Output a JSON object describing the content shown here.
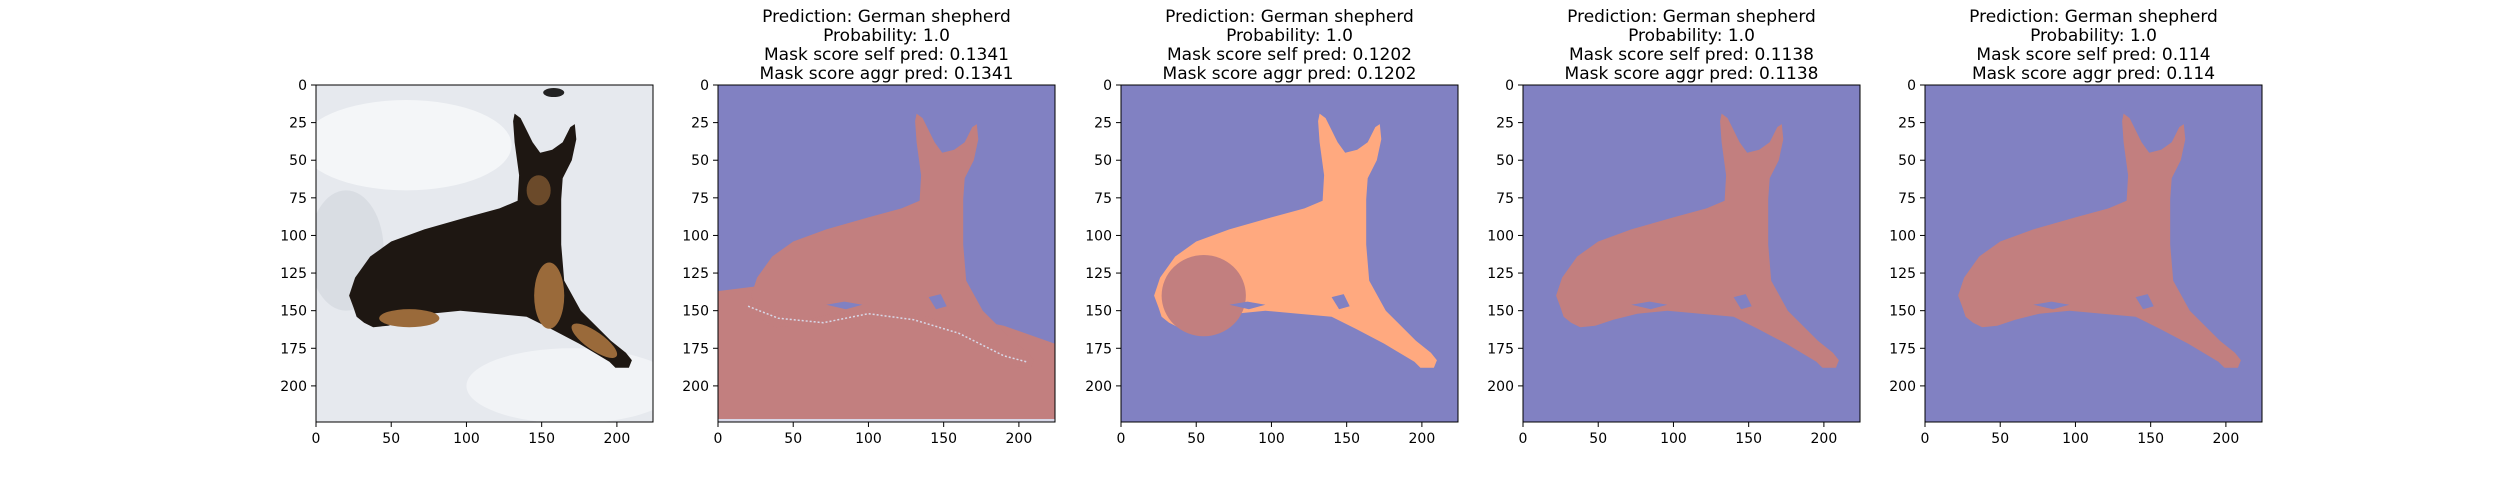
{
  "figure": {
    "background": "#ffffff",
    "axis_color": "#000000",
    "colors": {
      "mask_background": "#8181c2",
      "mask_object": "#c27f7f",
      "mask_highlight": "#ffa97f",
      "mask_edge": "#d8d8e8",
      "snow": "#e6e9ee",
      "dog_dark": "#1e1712",
      "dog_tan": "#9a6a3a"
    }
  },
  "chart_data": [
    {
      "type": "image",
      "content": "photo",
      "subject": "German shepherd lying in snow",
      "title_lines": [],
      "xlim": [
        0,
        224
      ],
      "ylim": [
        224,
        0
      ],
      "x_ticks": [
        0,
        50,
        100,
        150,
        200
      ],
      "y_ticks": [
        0,
        25,
        50,
        75,
        100,
        125,
        150,
        175,
        200
      ]
    },
    {
      "type": "image",
      "content": "mask",
      "mask_variant": "mask_with_ground",
      "title_lines": [
        "Prediction: German shepherd",
        "Probability: 1.0",
        "Mask score self pred: 0.1341",
        "Mask score aggr pred: 0.1341"
      ],
      "prediction": "German shepherd",
      "probability": 1.0,
      "mask_score_self_pred": 0.1341,
      "mask_score_aggr_pred": 0.1341,
      "xlim": [
        0,
        224
      ],
      "ylim": [
        224,
        0
      ],
      "x_ticks": [
        0,
        50,
        100,
        150,
        200
      ],
      "y_ticks": [
        0,
        25,
        50,
        75,
        100,
        125,
        150,
        175,
        200
      ]
    },
    {
      "type": "image",
      "content": "mask",
      "mask_variant": "two_part_mask",
      "title_lines": [
        "Prediction: German shepherd",
        "Probability: 1.0",
        "Mask score self pred: 0.1202",
        "Mask score aggr pred: 0.1202"
      ],
      "prediction": "German shepherd",
      "probability": 1.0,
      "mask_score_self_pred": 0.1202,
      "mask_score_aggr_pred": 0.1202,
      "xlim": [
        0,
        224
      ],
      "ylim": [
        224,
        0
      ],
      "x_ticks": [
        0,
        50,
        100,
        150,
        200
      ],
      "y_ticks": [
        0,
        25,
        50,
        75,
        100,
        125,
        150,
        175,
        200
      ]
    },
    {
      "type": "image",
      "content": "mask",
      "mask_variant": "dog_mask",
      "title_lines": [
        "Prediction: German shepherd",
        "Probability: 1.0",
        "Mask score self pred: 0.1138",
        "Mask score aggr pred: 0.1138"
      ],
      "prediction": "German shepherd",
      "probability": 1.0,
      "mask_score_self_pred": 0.1138,
      "mask_score_aggr_pred": 0.1138,
      "xlim": [
        0,
        224
      ],
      "ylim": [
        224,
        0
      ],
      "x_ticks": [
        0,
        50,
        100,
        150,
        200
      ],
      "y_ticks": [
        0,
        25,
        50,
        75,
        100,
        125,
        150,
        175,
        200
      ]
    },
    {
      "type": "image",
      "content": "mask",
      "mask_variant": "dog_mask",
      "title_lines": [
        "Prediction: German shepherd",
        "Probability: 1.0",
        "Mask score self pred: 0.114",
        "Mask score aggr pred: 0.114"
      ],
      "prediction": "German shepherd",
      "probability": 1.0,
      "mask_score_self_pred": 0.114,
      "mask_score_aggr_pred": 0.114,
      "xlim": [
        0,
        224
      ],
      "ylim": [
        224,
        0
      ],
      "x_ticks": [
        0,
        50,
        100,
        150,
        200
      ],
      "y_ticks": [
        0,
        25,
        50,
        75,
        100,
        125,
        150,
        175,
        200
      ]
    }
  ]
}
